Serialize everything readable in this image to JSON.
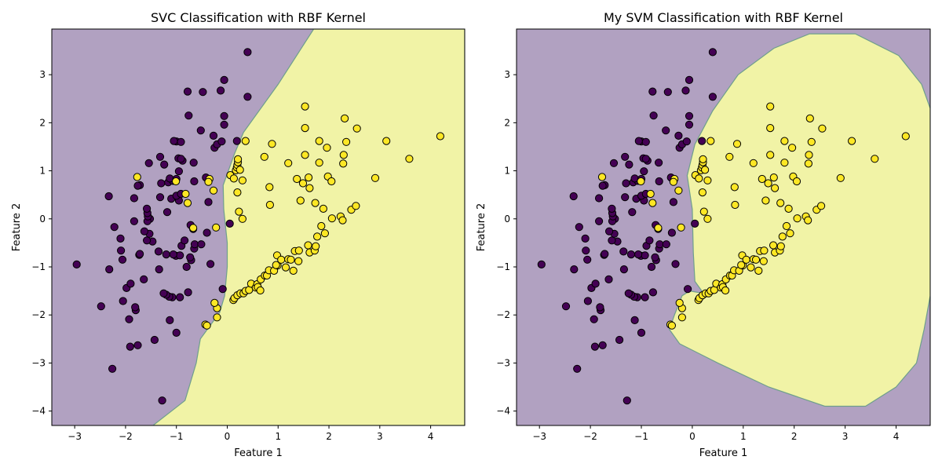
{
  "colors": {
    "class0": "#440154",
    "class1": "#fde725",
    "region0": "#b1a1c1",
    "region1": "#f1f3a6",
    "boundary": "#6f9f8c",
    "point_edge": "#000000"
  },
  "points": [
    [
      -1.28,
      -3.78,
      0
    ],
    [
      -2.26,
      -3.12,
      0
    ],
    [
      -1.91,
      -2.66,
      0
    ],
    [
      -1.76,
      -2.63,
      0
    ],
    [
      -1.43,
      -2.52,
      0
    ],
    [
      -1.0,
      -2.37,
      0
    ],
    [
      -1.93,
      -2.09,
      0
    ],
    [
      -1.13,
      -2.11,
      0
    ],
    [
      -1.8,
      -1.9,
      0
    ],
    [
      -1.81,
      -1.84,
      0
    ],
    [
      -2.48,
      -1.82,
      0
    ],
    [
      -2.05,
      -1.71,
      0
    ],
    [
      -1.08,
      -1.63,
      0
    ],
    [
      -1.14,
      -1.62,
      0
    ],
    [
      -0.93,
      -1.63,
      0
    ],
    [
      -1.2,
      -1.58,
      0
    ],
    [
      -1.25,
      -1.55,
      0
    ],
    [
      -0.77,
      -1.53,
      0
    ],
    [
      -0.09,
      -1.46,
      0
    ],
    [
      -1.98,
      -1.44,
      0
    ],
    [
      -1.9,
      -1.35,
      0
    ],
    [
      -1.64,
      -1.26,
      0
    ],
    [
      -0.8,
      -1.0,
      0
    ],
    [
      -2.32,
      -1.05,
      0
    ],
    [
      -1.34,
      -1.05,
      0
    ],
    [
      -2.96,
      -0.95,
      0
    ],
    [
      -0.33,
      -0.94,
      0
    ],
    [
      -0.71,
      -0.86,
      0
    ],
    [
      -0.73,
      -0.8,
      0
    ],
    [
      -2.06,
      -0.85,
      0
    ],
    [
      -1.73,
      -0.75,
      0
    ],
    [
      -1.72,
      -0.73,
      0
    ],
    [
      -1.01,
      -0.77,
      0
    ],
    [
      -0.93,
      -0.76,
      0
    ],
    [
      -1.2,
      -0.74,
      0
    ],
    [
      -1.06,
      -0.74,
      0
    ],
    [
      -1.35,
      -0.68,
      0
    ],
    [
      -2.09,
      -0.66,
      0
    ],
    [
      -0.65,
      -0.62,
      0
    ],
    [
      -0.9,
      -0.56,
      0
    ],
    [
      -0.64,
      -0.53,
      0
    ],
    [
      -0.51,
      -0.53,
      0
    ],
    [
      -1.47,
      -0.47,
      0
    ],
    [
      -1.58,
      -0.45,
      0
    ],
    [
      -0.84,
      -0.45,
      0
    ],
    [
      -2.1,
      -0.41,
      0
    ],
    [
      -1.53,
      -0.31,
      0
    ],
    [
      -1.63,
      -0.26,
      0
    ],
    [
      -0.4,
      -0.29,
      0
    ],
    [
      -0.67,
      -0.21,
      0
    ],
    [
      -0.72,
      -0.13,
      0
    ],
    [
      -2.22,
      -0.17,
      0
    ],
    [
      0.05,
      -0.1,
      0
    ],
    [
      -1.83,
      -0.05,
      0
    ],
    [
      -1.52,
      0.0,
      0
    ],
    [
      -1.57,
      -0.05,
      0
    ],
    [
      -1.56,
      0.05,
      0
    ],
    [
      -1.57,
      0.12,
      0
    ],
    [
      -1.58,
      0.21,
      0
    ],
    [
      -1.18,
      0.14,
      0
    ],
    [
      -0.37,
      0.35,
      0
    ],
    [
      -1.1,
      0.42,
      0
    ],
    [
      -0.95,
      0.38,
      0
    ],
    [
      -1.83,
      0.43,
      0
    ],
    [
      -1.0,
      0.48,
      0
    ],
    [
      -1.32,
      0.45,
      0
    ],
    [
      -0.91,
      0.52,
      0
    ],
    [
      -2.33,
      0.47,
      0
    ],
    [
      -1.72,
      0.7,
      0
    ],
    [
      -1.76,
      0.69,
      0
    ],
    [
      -1.3,
      0.74,
      0
    ],
    [
      -0.65,
      0.78,
      0
    ],
    [
      -1.16,
      0.76,
      0
    ],
    [
      -1.07,
      0.79,
      0
    ],
    [
      -1.13,
      0.84,
      0
    ],
    [
      -1.0,
      0.83,
      0
    ],
    [
      -0.42,
      0.86,
      0
    ],
    [
      -0.95,
      0.99,
      0
    ],
    [
      -1.54,
      1.16,
      0
    ],
    [
      -1.24,
      1.13,
      0
    ],
    [
      -0.66,
      1.17,
      0
    ],
    [
      -0.96,
      1.26,
      0
    ],
    [
      -0.88,
      1.21,
      0
    ],
    [
      -0.91,
      1.25,
      0
    ],
    [
      -1.32,
      1.29,
      0
    ],
    [
      -0.25,
      1.48,
      0
    ],
    [
      -0.2,
      1.55,
      0
    ],
    [
      -0.11,
      1.61,
      0
    ],
    [
      -1.0,
      1.61,
      0
    ],
    [
      -1.05,
      1.62,
      0
    ],
    [
      -0.91,
      1.6,
      0
    ],
    [
      0.19,
      1.62,
      0
    ],
    [
      -0.27,
      1.73,
      0
    ],
    [
      -0.52,
      1.84,
      0
    ],
    [
      -0.06,
      1.96,
      0
    ],
    [
      -0.06,
      2.14,
      0
    ],
    [
      -0.76,
      2.15,
      0
    ],
    [
      -0.48,
      2.64,
      0
    ],
    [
      -0.78,
      2.65,
      0
    ],
    [
      -0.13,
      2.67,
      0
    ],
    [
      -0.06,
      2.89,
      0
    ],
    [
      0.4,
      2.54,
      0
    ],
    [
      0.4,
      3.47,
      0
    ],
    [
      -0.43,
      -2.2,
      1
    ],
    [
      -0.4,
      -2.22,
      1
    ],
    [
      -0.2,
      -2.05,
      1
    ],
    [
      -0.2,
      -1.86,
      1
    ],
    [
      -0.25,
      -1.75,
      1
    ],
    [
      0.12,
      -1.69,
      1
    ],
    [
      0.14,
      -1.65,
      1
    ],
    [
      0.2,
      -1.59,
      1
    ],
    [
      0.26,
      -1.55,
      1
    ],
    [
      0.32,
      -1.55,
      1
    ],
    [
      0.36,
      -1.5,
      1
    ],
    [
      0.43,
      -1.48,
      1
    ],
    [
      0.47,
      -1.35,
      1
    ],
    [
      0.56,
      -1.43,
      1
    ],
    [
      0.59,
      -1.36,
      1
    ],
    [
      0.6,
      -1.42,
      1
    ],
    [
      0.65,
      -1.49,
      1
    ],
    [
      0.66,
      -1.26,
      1
    ],
    [
      0.74,
      -1.18,
      1
    ],
    [
      0.78,
      -1.18,
      1
    ],
    [
      0.82,
      -1.07,
      1
    ],
    [
      0.92,
      -1.08,
      1
    ],
    [
      0.99,
      -0.97,
      1
    ],
    [
      0.96,
      -0.96,
      1
    ],
    [
      0.98,
      -0.76,
      1
    ],
    [
      1.06,
      -0.85,
      1
    ],
    [
      1.15,
      -1.01,
      1
    ],
    [
      1.2,
      -0.84,
      1
    ],
    [
      1.25,
      -0.85,
      1
    ],
    [
      1.3,
      -1.08,
      1
    ],
    [
      1.33,
      -0.67,
      1
    ],
    [
      1.41,
      -0.66,
      1
    ],
    [
      1.4,
      -0.88,
      1
    ],
    [
      1.62,
      -0.7,
      1
    ],
    [
      1.72,
      -0.66,
      1
    ],
    [
      1.59,
      -0.55,
      1
    ],
    [
      1.74,
      -0.57,
      1
    ],
    [
      1.77,
      -0.37,
      1
    ],
    [
      1.85,
      -0.15,
      1
    ],
    [
      1.92,
      -0.3,
      1
    ],
    [
      2.23,
      0.05,
      1
    ],
    [
      2.27,
      -0.03,
      1
    ],
    [
      2.06,
      0.01,
      1
    ],
    [
      2.44,
      0.19,
      1
    ],
    [
      2.53,
      0.27,
      1
    ],
    [
      1.89,
      0.21,
      1
    ],
    [
      1.73,
      0.33,
      1
    ],
    [
      1.44,
      0.38,
      1
    ],
    [
      1.62,
      0.64,
      1
    ],
    [
      1.49,
      0.74,
      1
    ],
    [
      1.37,
      0.83,
      1
    ],
    [
      1.6,
      0.86,
      1
    ],
    [
      1.98,
      0.88,
      1
    ],
    [
      2.05,
      0.78,
      1
    ],
    [
      2.28,
      1.15,
      1
    ],
    [
      2.29,
      1.33,
      1
    ],
    [
      1.81,
      1.17,
      1
    ],
    [
      1.53,
      1.33,
      1
    ],
    [
      2.34,
      1.6,
      1
    ],
    [
      1.96,
      1.48,
      1
    ],
    [
      1.81,
      1.62,
      1
    ],
    [
      1.53,
      1.89,
      1
    ],
    [
      2.31,
      2.09,
      1
    ],
    [
      2.55,
      1.88,
      1
    ],
    [
      2.91,
      0.85,
      1
    ],
    [
      3.13,
      1.62,
      1
    ],
    [
      3.58,
      1.25,
      1
    ],
    [
      4.19,
      1.72,
      1
    ],
    [
      1.53,
      2.34,
      1
    ],
    [
      1.2,
      1.16,
      1
    ],
    [
      0.73,
      1.29,
      1
    ],
    [
      0.88,
      1.56,
      1
    ],
    [
      0.36,
      1.62,
      1
    ],
    [
      0.83,
      0.66,
      1
    ],
    [
      0.84,
      0.29,
      1
    ],
    [
      0.3,
      0.8,
      1
    ],
    [
      0.2,
      0.55,
      1
    ],
    [
      0.23,
      0.15,
      1
    ],
    [
      0.3,
      0.0,
      1
    ],
    [
      0.06,
      0.91,
      1
    ],
    [
      0.13,
      0.84,
      1
    ],
    [
      0.17,
      1.01,
      1
    ],
    [
      0.19,
      1.07,
      1
    ],
    [
      0.2,
      1.12,
      1
    ],
    [
      0.21,
      1.18,
      1
    ],
    [
      0.21,
      1.24,
      1
    ],
    [
      0.25,
      1.02,
      1
    ],
    [
      -0.35,
      0.83,
      1
    ],
    [
      -0.37,
      0.77,
      1
    ],
    [
      -0.27,
      0.59,
      1
    ],
    [
      -0.82,
      0.52,
      1
    ],
    [
      -0.78,
      0.33,
      1
    ],
    [
      -1.01,
      0.78,
      1
    ],
    [
      -1.77,
      0.87,
      1
    ],
    [
      -0.67,
      -0.19,
      1
    ],
    [
      -0.22,
      -0.18,
      1
    ]
  ],
  "chart_data": [
    {
      "type": "scatter",
      "title": "SVC Classification with RBF Kernel",
      "xlabel": "Feature 1",
      "ylabel": "Feature 2",
      "xlim": [
        -3.45,
        4.67
      ],
      "ylim": [
        -4.3,
        3.95
      ],
      "xticks": [
        -3,
        -2,
        -1,
        0,
        1,
        2,
        3,
        4
      ],
      "yticks": [
        -4,
        -3,
        -2,
        -1,
        0,
        1,
        2,
        3
      ],
      "grid": false,
      "decision_regions": {
        "class0_color": "#b1a1c1",
        "class1_color": "#f1f3a6",
        "boundary_points": [
          [
            -1.46,
            -4.3
          ],
          [
            -0.83,
            -3.78
          ],
          [
            -0.61,
            -3.0
          ],
          [
            -0.53,
            -2.5
          ],
          [
            -0.15,
            -1.95
          ],
          [
            -0.05,
            -1.6
          ],
          [
            0.0,
            -1.0
          ],
          [
            0.0,
            -0.5
          ],
          [
            -0.07,
            0.2
          ],
          [
            -0.08,
            0.7
          ],
          [
            0.14,
            1.35
          ],
          [
            0.32,
            1.8
          ],
          [
            1.0,
            2.8
          ],
          [
            1.7,
            3.95
          ]
        ]
      }
    },
    {
      "type": "scatter",
      "title": "My SVM Classification with RBF Kernel",
      "xlabel": "Feature 1",
      "ylabel": "Feature 2",
      "xlim": [
        -3.45,
        4.67
      ],
      "ylim": [
        -4.3,
        3.95
      ],
      "xticks": [
        -3,
        -2,
        -1,
        0,
        1,
        2,
        3,
        4
      ],
      "yticks": [
        -4,
        -3,
        -2,
        -1,
        0,
        1,
        2,
        3
      ],
      "grid": false,
      "decision_regions": {
        "class0_color": "#b1a1c1",
        "class1_color": "#f1f3a6",
        "boundary_points": [
          [
            0.22,
            -1.55
          ],
          [
            -0.05,
            -1.5
          ],
          [
            -0.2,
            -1.6
          ],
          [
            -0.35,
            -2.0
          ],
          [
            -0.45,
            -2.3
          ],
          [
            -0.25,
            -2.6
          ],
          [
            0.5,
            -3.0
          ],
          [
            1.5,
            -3.5
          ],
          [
            2.6,
            -3.9
          ],
          [
            3.4,
            -3.9
          ],
          [
            4.0,
            -3.5
          ],
          [
            4.4,
            -3.0
          ],
          [
            4.55,
            -2.3
          ],
          [
            4.67,
            -1.6
          ],
          [
            4.67,
            1.5
          ],
          [
            4.67,
            2.3
          ],
          [
            4.5,
            2.8
          ],
          [
            4.05,
            3.4
          ],
          [
            3.2,
            3.85
          ],
          [
            2.3,
            3.85
          ],
          [
            1.6,
            3.55
          ],
          [
            0.9,
            3.0
          ],
          [
            0.4,
            2.25
          ],
          [
            0.05,
            1.55
          ],
          [
            -0.1,
            0.9
          ],
          [
            0.0,
            0.2
          ],
          [
            0.02,
            -0.7
          ],
          [
            0.05,
            -1.3
          ]
        ]
      }
    }
  ]
}
